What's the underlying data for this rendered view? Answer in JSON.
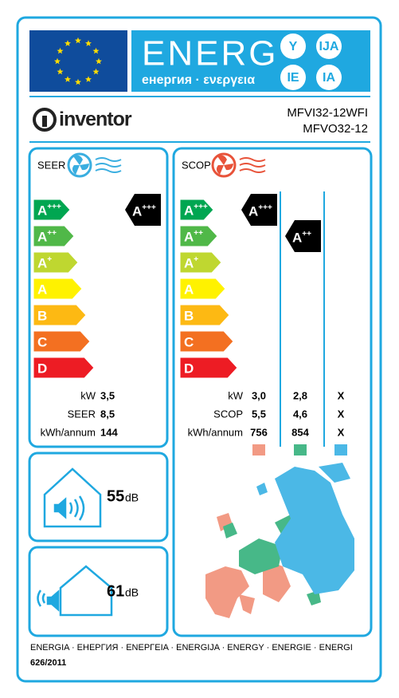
{
  "header": {
    "title": "ENERG",
    "subtitle": "енергия · ενεργεια",
    "suffixes": [
      "Y",
      "IJA",
      "IE",
      "IA"
    ]
  },
  "brand": "inventor",
  "models": [
    "MFVI32-12WFI",
    "MFVO32-12"
  ],
  "scale": [
    "A+++",
    "A++",
    "A+",
    "A",
    "B",
    "C",
    "D"
  ],
  "scale_colors": [
    "#00a651",
    "#50b848",
    "#bfd730",
    "#fff200",
    "#fdb913",
    "#f37021",
    "#ed1c24"
  ],
  "cooling": {
    "label": "SEER",
    "class": "A+++",
    "rows": [
      {
        "label": "kW",
        "values": [
          "3,5"
        ]
      },
      {
        "label": "SEER",
        "values": [
          "8,5"
        ]
      },
      {
        "label": "kWh/annum",
        "values": [
          "144"
        ]
      }
    ]
  },
  "heating": {
    "label": "SCOP",
    "classes": [
      "A+++",
      "A++"
    ],
    "rows": [
      {
        "label": "kW",
        "values": [
          "3,0",
          "2,8",
          "X"
        ]
      },
      {
        "label": "SCOP",
        "values": [
          "5,5",
          "4,6",
          "X"
        ]
      },
      {
        "label": "kWh/annum",
        "values": [
          "756",
          "854",
          "X"
        ]
      }
    ],
    "zone_colors": [
      "#f29a84",
      "#47b888",
      "#4bb8e6"
    ]
  },
  "noise": {
    "indoor": {
      "value": 55,
      "unit": "dB"
    },
    "outdoor": {
      "value": 61,
      "unit": "dB"
    }
  },
  "footer": {
    "languages": "ENERGIA · ЕНЕРГИЯ · ΕΝΕΡΓΕΙΑ · ENERGIJA · ENERGY · ENERGIE · ENERGI",
    "regulation": "626/2011"
  }
}
